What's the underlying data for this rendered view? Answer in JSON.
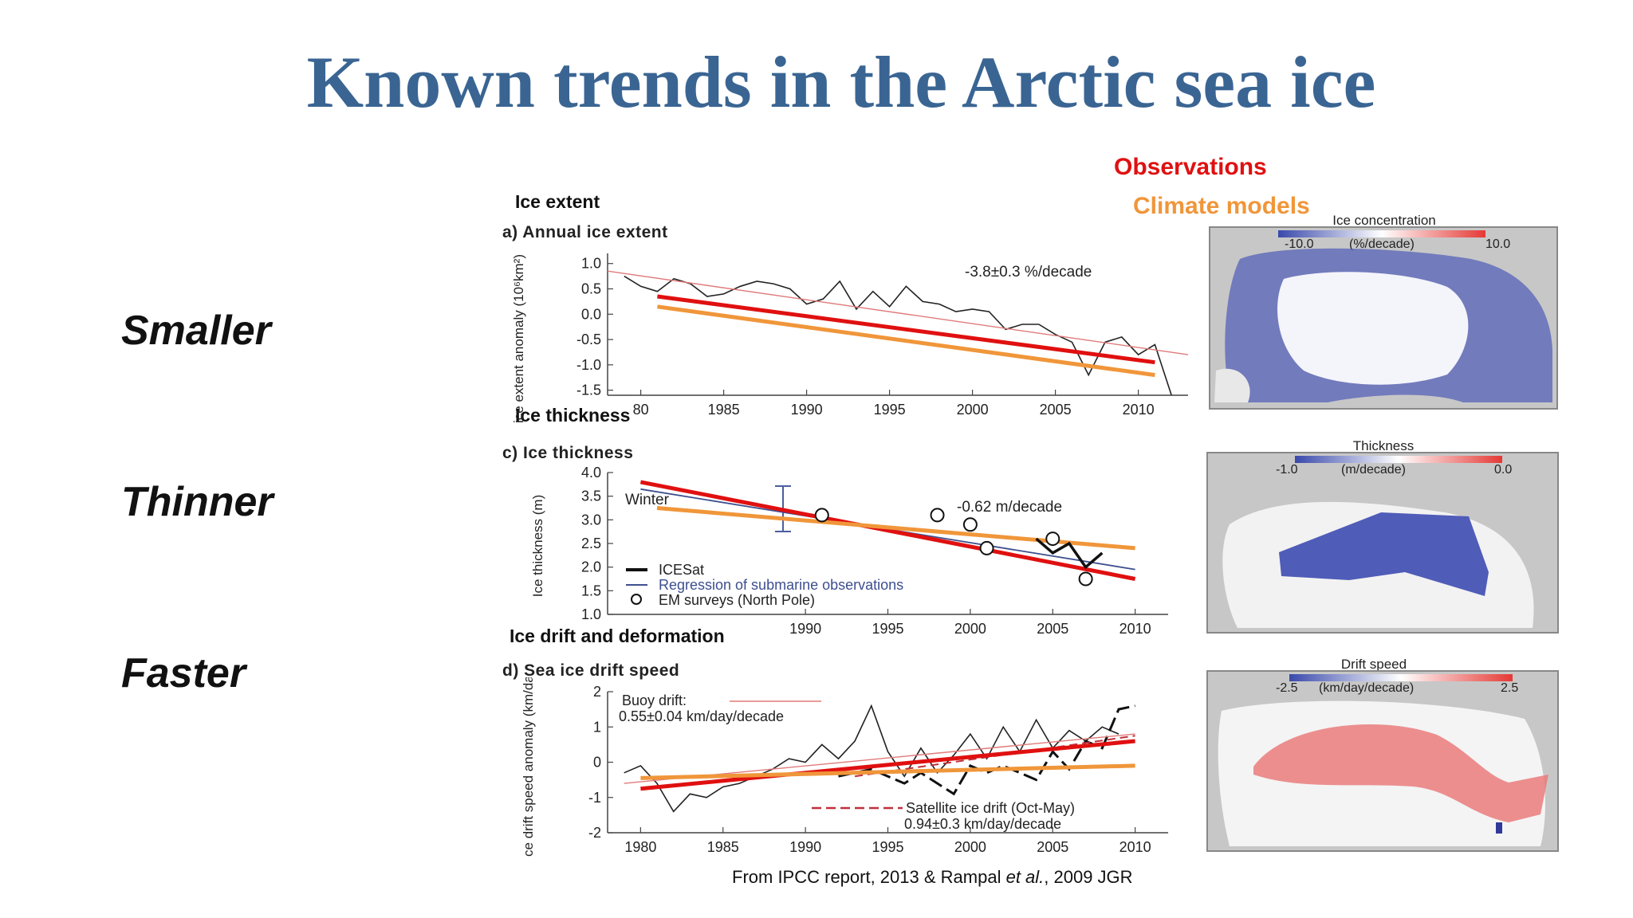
{
  "title": "Known trends in the Arctic sea ice",
  "side_labels": [
    "Smaller",
    "Thinner",
    "Faster"
  ],
  "legend": {
    "observations": "Observations",
    "models": "Climate models",
    "obs_color": "#e01010",
    "model_color": "#f0963a"
  },
  "section_labels": [
    "Ice extent",
    "Ice thickness",
    "Ice drift and deformation"
  ],
  "credit": {
    "prefix": "From IPCC report, 2013 & Rampal ",
    "italic": "et al.",
    "suffix": ", 2009 JGR"
  },
  "maps": [
    {
      "title": "Ice concentration",
      "scale_min": "-10.0",
      "unit": "(%/decade)",
      "scale_max": "10.0",
      "colors": [
        "#3949ab",
        "#ffffff",
        "#e53935"
      ]
    },
    {
      "title": "Thickness",
      "scale_min": "-1.0",
      "unit": "(m/decade)",
      "scale_max": "0.0",
      "colors": [
        "#3949ab",
        "#ffffff",
        "#e53935"
      ]
    },
    {
      "title": "Drift speed",
      "scale_min": "-2.5",
      "unit": "(km/day/decade)",
      "scale_max": "2.5",
      "colors": [
        "#3949ab",
        "#ffffff",
        "#e53935"
      ]
    }
  ],
  "chart_data": [
    {
      "type": "line",
      "title": "a) Annual ice extent",
      "ylabel": "ice extent anomaly (10⁶km²)",
      "xlim": [
        1978,
        2013
      ],
      "ylim": [
        -1.6,
        1.2
      ],
      "yticks": [
        "1.0",
        "0.5",
        "0.0",
        "-0.5",
        "-1.0",
        "-1.5"
      ],
      "xticks": [
        "80",
        "1985",
        "1990",
        "1995",
        "2000",
        "2005",
        "2010"
      ],
      "annotation": "-3.8±0.3 %/decade",
      "series": [
        {
          "x": [
            1979,
            1980,
            1981,
            1982,
            1983,
            1984,
            1985,
            1986,
            1987,
            1988,
            1989,
            1990,
            1991,
            1992,
            1993,
            1994,
            1995,
            1996,
            1997,
            1998,
            1999,
            2000,
            2001,
            2002,
            2003,
            2004,
            2005,
            2006,
            2007,
            2008,
            2009,
            2010,
            2011,
            2012
          ],
          "values": [
            0.75,
            0.55,
            0.45,
            0.7,
            0.6,
            0.35,
            0.4,
            0.55,
            0.65,
            0.6,
            0.5,
            0.2,
            0.3,
            0.65,
            0.1,
            0.45,
            0.15,
            0.55,
            0.25,
            0.2,
            0.05,
            0.1,
            0.05,
            -0.3,
            -0.2,
            -0.2,
            -0.4,
            -0.55,
            -1.2,
            -0.55,
            -0.45,
            -0.8,
            -0.6,
            -1.6
          ]
        },
        {
          "x": [
            1978,
            2013
          ],
          "values": [
            0.85,
            -0.8
          ]
        },
        {
          "x": [
            1981,
            2011
          ],
          "values": [
            0.35,
            -0.95
          ]
        },
        {
          "x": [
            1981,
            2011
          ],
          "values": [
            0.15,
            -1.2
          ]
        }
      ]
    },
    {
      "type": "line",
      "title": "c) Ice thickness",
      "ylabel": "Ice thickness (m)",
      "xlim": [
        1978,
        2012
      ],
      "ylim": [
        1.0,
        4.0
      ],
      "yticks": [
        "4.0",
        "3.5",
        "3.0",
        "2.5",
        "2.0",
        "1.5",
        "1.0"
      ],
      "xticks": [
        "1990",
        "1995",
        "2000",
        "2005",
        "2010"
      ],
      "annotation": "-0.62 m/decade",
      "inline_label": "Winter",
      "legend": [
        "ICESat",
        "Regression of submarine observations",
        "EM surveys (North Pole)"
      ],
      "series": [
        {
          "name": "ICESat",
          "x": [
            2004,
            2005,
            2006,
            2007,
            2008
          ],
          "values": [
            2.6,
            2.3,
            2.5,
            2.0,
            2.3
          ]
        },
        {
          "name": "Regression of submarine observations",
          "x": [
            1980,
            2010
          ],
          "values": [
            3.65,
            1.95
          ]
        },
        {
          "name": "EM surveys (North Pole)",
          "x": [
            1991,
            1998,
            2000,
            2001,
            2005,
            2007
          ],
          "values": [
            3.1,
            3.1,
            2.9,
            2.4,
            2.6,
            1.75
          ]
        },
        {
          "x": [
            1980,
            2010
          ],
          "values": [
            3.8,
            1.75
          ]
        },
        {
          "x": [
            1981,
            2010
          ],
          "values": [
            3.25,
            2.4
          ]
        }
      ]
    },
    {
      "type": "line",
      "title": "d) Sea ice drift speed",
      "ylabel": "sea ice drift speed anomaly (km/day)",
      "xlim": [
        1978,
        2012
      ],
      "ylim": [
        -2,
        2
      ],
      "yticks": [
        "2",
        "1",
        "0",
        "-1",
        "-2"
      ],
      "xticks": [
        "1980",
        "1985",
        "1990",
        "1995",
        "2000",
        "2005",
        "2010"
      ],
      "legend": [
        "Buoy drift:",
        "0.55±0.04 km/day/decade",
        "Satellite ice drift (Oct-May)",
        "0.94±0.3 km/day/decade"
      ],
      "series": [
        {
          "name": "Buoy drift:",
          "x": [
            1979,
            1980,
            1981,
            1982,
            1983,
            1984,
            1985,
            1986,
            1987,
            1988,
            1989,
            1990,
            1991,
            1992,
            1993,
            1994,
            1995,
            1996,
            1997,
            1998,
            1999,
            2000,
            2001,
            2002,
            2003,
            2004,
            2005,
            2006,
            2007,
            2008,
            2009
          ],
          "values": [
            -0.3,
            -0.1,
            -0.6,
            -1.4,
            -0.9,
            -1.0,
            -0.7,
            -0.6,
            -0.4,
            -0.2,
            0.1,
            0.0,
            0.5,
            0.1,
            0.6,
            1.6,
            0.3,
            -0.4,
            0.4,
            -0.3,
            0.2,
            0.8,
            0.1,
            1.0,
            0.3,
            1.2,
            0.4,
            0.9,
            0.6,
            1.0,
            0.8
          ]
        },
        {
          "name": "Satellite ice drift (Oct-May)",
          "x": [
            1992,
            1994,
            1996,
            1997,
            1999,
            2000,
            2001,
            2002,
            2004,
            2005,
            2006,
            2007,
            2008,
            2009,
            2010
          ],
          "values": [
            -0.4,
            -0.2,
            -0.6,
            -0.3,
            -0.9,
            -0.1,
            -0.3,
            -0.1,
            -0.5,
            0.3,
            -0.2,
            0.6,
            0.4,
            1.5,
            1.6
          ]
        },
        {
          "x": [
            1979,
            2010
          ],
          "values": [
            -0.6,
            0.8
          ]
        },
        {
          "x": [
            1993,
            2010
          ],
          "values": [
            -0.4,
            0.75
          ]
        },
        {
          "x": [
            1980,
            2010
          ],
          "values": [
            -0.75,
            0.6
          ]
        },
        {
          "x": [
            1980,
            2010
          ],
          "values": [
            -0.45,
            -0.1
          ]
        }
      ]
    }
  ]
}
